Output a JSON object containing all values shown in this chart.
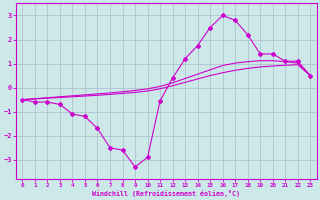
{
  "xlabel": "Windchill (Refroidissement éolien,°C)",
  "bg_color": "#cce8e8",
  "line_color": "#cc00cc",
  "grid_color": "#aabbcc",
  "hours": [
    0,
    1,
    2,
    3,
    4,
    5,
    6,
    7,
    8,
    9,
    10,
    11,
    12,
    13,
    14,
    15,
    16,
    17,
    18,
    19,
    20,
    21,
    22,
    23
  ],
  "windchill": [
    -0.5,
    -0.6,
    -0.6,
    -0.7,
    -1.1,
    -1.2,
    -1.7,
    -2.5,
    -2.6,
    -3.3,
    -2.9,
    -0.55,
    0.4,
    1.2,
    1.75,
    2.5,
    3.0,
    2.8,
    2.2,
    1.4,
    1.4,
    1.1,
    1.1,
    0.5
  ],
  "line2": [
    -0.5,
    -0.47,
    -0.44,
    -0.41,
    -0.38,
    -0.35,
    -0.32,
    -0.28,
    -0.24,
    -0.2,
    -0.14,
    -0.05,
    0.08,
    0.22,
    0.36,
    0.5,
    0.62,
    0.72,
    0.8,
    0.86,
    0.9,
    0.93,
    0.95,
    0.5
  ],
  "line3": [
    -0.5,
    -0.46,
    -0.42,
    -0.38,
    -0.34,
    -0.3,
    -0.26,
    -0.22,
    -0.17,
    -0.12,
    -0.05,
    0.05,
    0.2,
    0.38,
    0.56,
    0.74,
    0.92,
    1.02,
    1.08,
    1.12,
    1.12,
    1.08,
    1.02,
    0.5
  ],
  "ylim": [
    -3.8,
    3.5
  ],
  "yticks": [
    -3,
    -2,
    -1,
    0,
    1,
    2,
    3
  ],
  "xticks": [
    0,
    1,
    2,
    3,
    4,
    5,
    6,
    7,
    8,
    9,
    10,
    11,
    12,
    13,
    14,
    15,
    16,
    17,
    18,
    19,
    20,
    21,
    22,
    23
  ]
}
